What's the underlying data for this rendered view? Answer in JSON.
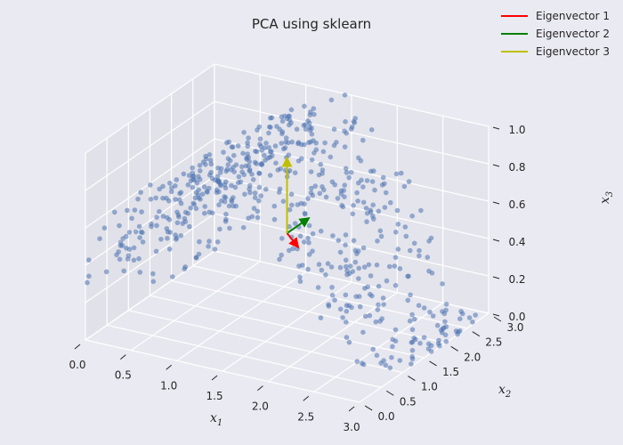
{
  "chart_data": {
    "type": "scatter",
    "title": "PCA using sklearn",
    "xlabel": "x",
    "xlabel_sub": "1",
    "ylabel": "x",
    "ylabel_sub": "2",
    "zlabel": "x",
    "zlabel_sub": "3",
    "xlim": [
      0.0,
      3.0
    ],
    "ylim": [
      0.0,
      3.0
    ],
    "zlim": [
      0.0,
      1.0
    ],
    "x_ticks": [
      "0.0",
      "0.5",
      "1.0",
      "1.5",
      "2.0",
      "2.5",
      "3.0"
    ],
    "y_ticks": [
      "0.0",
      "0.5",
      "1.0",
      "1.5",
      "2.0",
      "2.5",
      "3.0"
    ],
    "z_ticks": [
      "0.0",
      "0.2",
      "0.4",
      "0.6",
      "0.8",
      "1.0"
    ],
    "grid": true,
    "legend_position": "top-right",
    "point_color": "#4c72b0",
    "series": [
      {
        "kind": "points",
        "note": "approximately 600 points sampled from a curved 3D manifold spanning the full axis ranges"
      }
    ],
    "vectors": [
      {
        "name": "Eigenvector 1",
        "color": "#ff0000",
        "from": [
          1.5,
          1.5,
          0.5
        ],
        "to": [
          1.62,
          1.5,
          0.44
        ]
      },
      {
        "name": "Eigenvector 2",
        "color": "#008000",
        "from": [
          1.5,
          1.5,
          0.5
        ],
        "to": [
          1.5,
          2.0,
          0.5
        ]
      },
      {
        "name": "Eigenvector 3",
        "color": "#bfbf00",
        "from": [
          1.5,
          1.5,
          0.5
        ],
        "to": [
          1.5,
          1.5,
          0.9
        ]
      }
    ]
  }
}
